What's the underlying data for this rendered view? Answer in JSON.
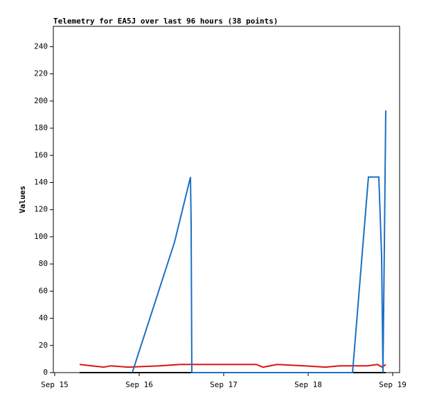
{
  "chart_data": {
    "type": "line",
    "title": "Telemetry for EA5J over last 96 hours (38 points)",
    "y_label": "Values",
    "series": [
      {
        "color": "#000000",
        "x": [
          15.295,
          16.623,
          18.525,
          18.918
        ],
        "values": [
          0,
          0,
          0,
          0
        ]
      },
      {
        "color": "#e01010",
        "x": [
          15.295,
          15.582,
          15.664,
          15.869,
          16.238,
          16.484,
          17.385,
          17.467,
          17.631,
          17.959,
          18.205,
          18.369,
          18.697,
          18.82,
          18.877,
          18.918
        ],
        "values": [
          6,
          4,
          5,
          4,
          5,
          6,
          6,
          4,
          6,
          5,
          4,
          5,
          5,
          6,
          4,
          6
        ]
      },
      {
        "color": "#1a6fc4",
        "x": [
          15.918,
          16.418,
          16.607,
          16.615,
          16.623,
          18.525,
          18.713,
          18.836,
          18.869,
          18.885,
          18.902,
          18.918
        ],
        "values": [
          0,
          96,
          144,
          109,
          0,
          0,
          144,
          144,
          86,
          0,
          96,
          193
        ]
      }
    ],
    "xlim": [
      14.984,
      19.082
    ],
    "xticks": [
      {
        "value": 15,
        "label": "Sep 15"
      },
      {
        "value": 16,
        "label": "Sep 16"
      },
      {
        "value": 17,
        "label": "Sep 17"
      },
      {
        "value": 18,
        "label": "Sep 18"
      },
      {
        "value": 19,
        "label": "Sep 19"
      }
    ],
    "ylim": [
      0,
      255
    ],
    "yticks": [
      0,
      20,
      40,
      60,
      80,
      100,
      120,
      140,
      160,
      180,
      200,
      220,
      240
    ]
  }
}
